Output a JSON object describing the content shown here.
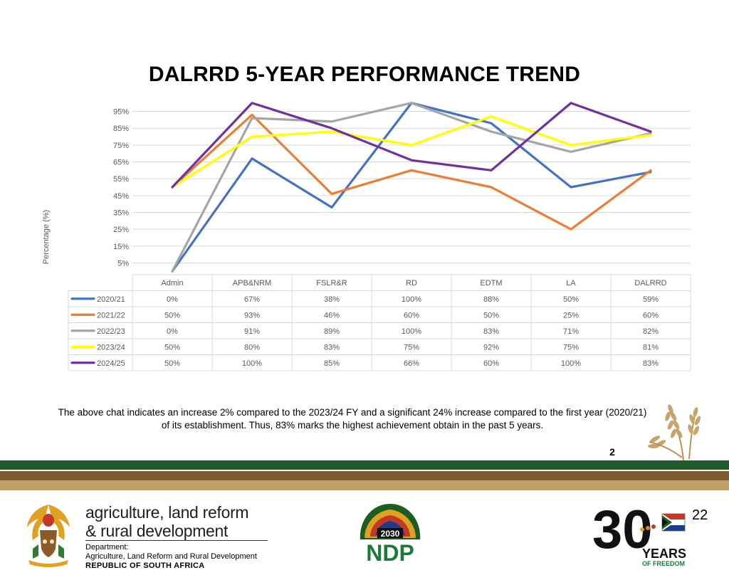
{
  "title": "DALRRD 5-YEAR PERFORMANCE TREND",
  "chart_data": {
    "type": "line",
    "title": "DALRRD 5-YEAR PERFORMANCE TREND",
    "ylabel": "Percentage (%)",
    "xlabel": "",
    "ylim": [
      -2,
      102
    ],
    "yticks": [
      "5%",
      "15%",
      "25%",
      "35%",
      "45%",
      "55%",
      "65%",
      "75%",
      "85%",
      "95%"
    ],
    "ytick_values": [
      5,
      15,
      25,
      35,
      45,
      55,
      65,
      75,
      85,
      95
    ],
    "grid": true,
    "legend": "data-table-left",
    "categories": [
      "Admin",
      "APB&NRM",
      "FSLR&R",
      "RD",
      "EDTM",
      "LA",
      "DALRRD"
    ],
    "series": [
      {
        "name": "2020/21",
        "color": "#4472c4",
        "values": [
          0,
          67,
          38,
          100,
          88,
          50,
          59
        ],
        "labels": [
          "0%",
          "67%",
          "38%",
          "100%",
          "88%",
          "50%",
          "59%"
        ]
      },
      {
        "name": "2021/22",
        "color": "#ed7d31",
        "values": [
          50,
          93,
          46,
          60,
          50,
          25,
          60
        ],
        "labels": [
          "50%",
          "93%",
          "46%",
          "60%",
          "50%",
          "25%",
          "60%"
        ]
      },
      {
        "name": "2022/23",
        "color": "#a5a5a5",
        "values": [
          0,
          91,
          89,
          100,
          83,
          71,
          82
        ],
        "labels": [
          "0%",
          "91%",
          "89%",
          "100%",
          "83%",
          "71%",
          "82%"
        ]
      },
      {
        "name": "2023/24",
        "color": "#ffff00",
        "values": [
          50,
          80,
          83,
          75,
          92,
          75,
          81
        ],
        "labels": [
          "50%",
          "80%",
          "83%",
          "75%",
          "92%",
          "75%",
          "81%"
        ]
      },
      {
        "name": "2024/25",
        "color": "#7030a0",
        "values": [
          50,
          100,
          85,
          66,
          60,
          100,
          83
        ],
        "labels": [
          "50%",
          "100%",
          "85%",
          "66%",
          "60%",
          "100%",
          "83%"
        ]
      }
    ]
  },
  "caption": {
    "line1": "The above chat indicates an increase 2% compared to the 2023/24 FY and a significant 24% increase compared to the first year (2020/21)",
    "line2": "of its establishment.  Thus, 83% marks the highest achievement obtain in the past 5 years."
  },
  "slide_number_small": [
    "2",
    "2"
  ],
  "slide_number": "22",
  "footer": {
    "dept_line1": "agriculture, land reform",
    "dept_line2": "& rural development",
    "dept_label": "Department:",
    "dept_name": "Agriculture, Land Reform and Rural Development",
    "country": "REPUBLIC OF SOUTH AFRICA",
    "ndp_year": "2030",
    "ndp_text": "NDP",
    "years_number": "30",
    "years_text": "YEARS",
    "freedom_text": "OF FREEDOM",
    "colors": {
      "band_green": "#1e5a2a",
      "band_brown": "#7a5a2e",
      "band_tan": "#c2a06a"
    }
  }
}
